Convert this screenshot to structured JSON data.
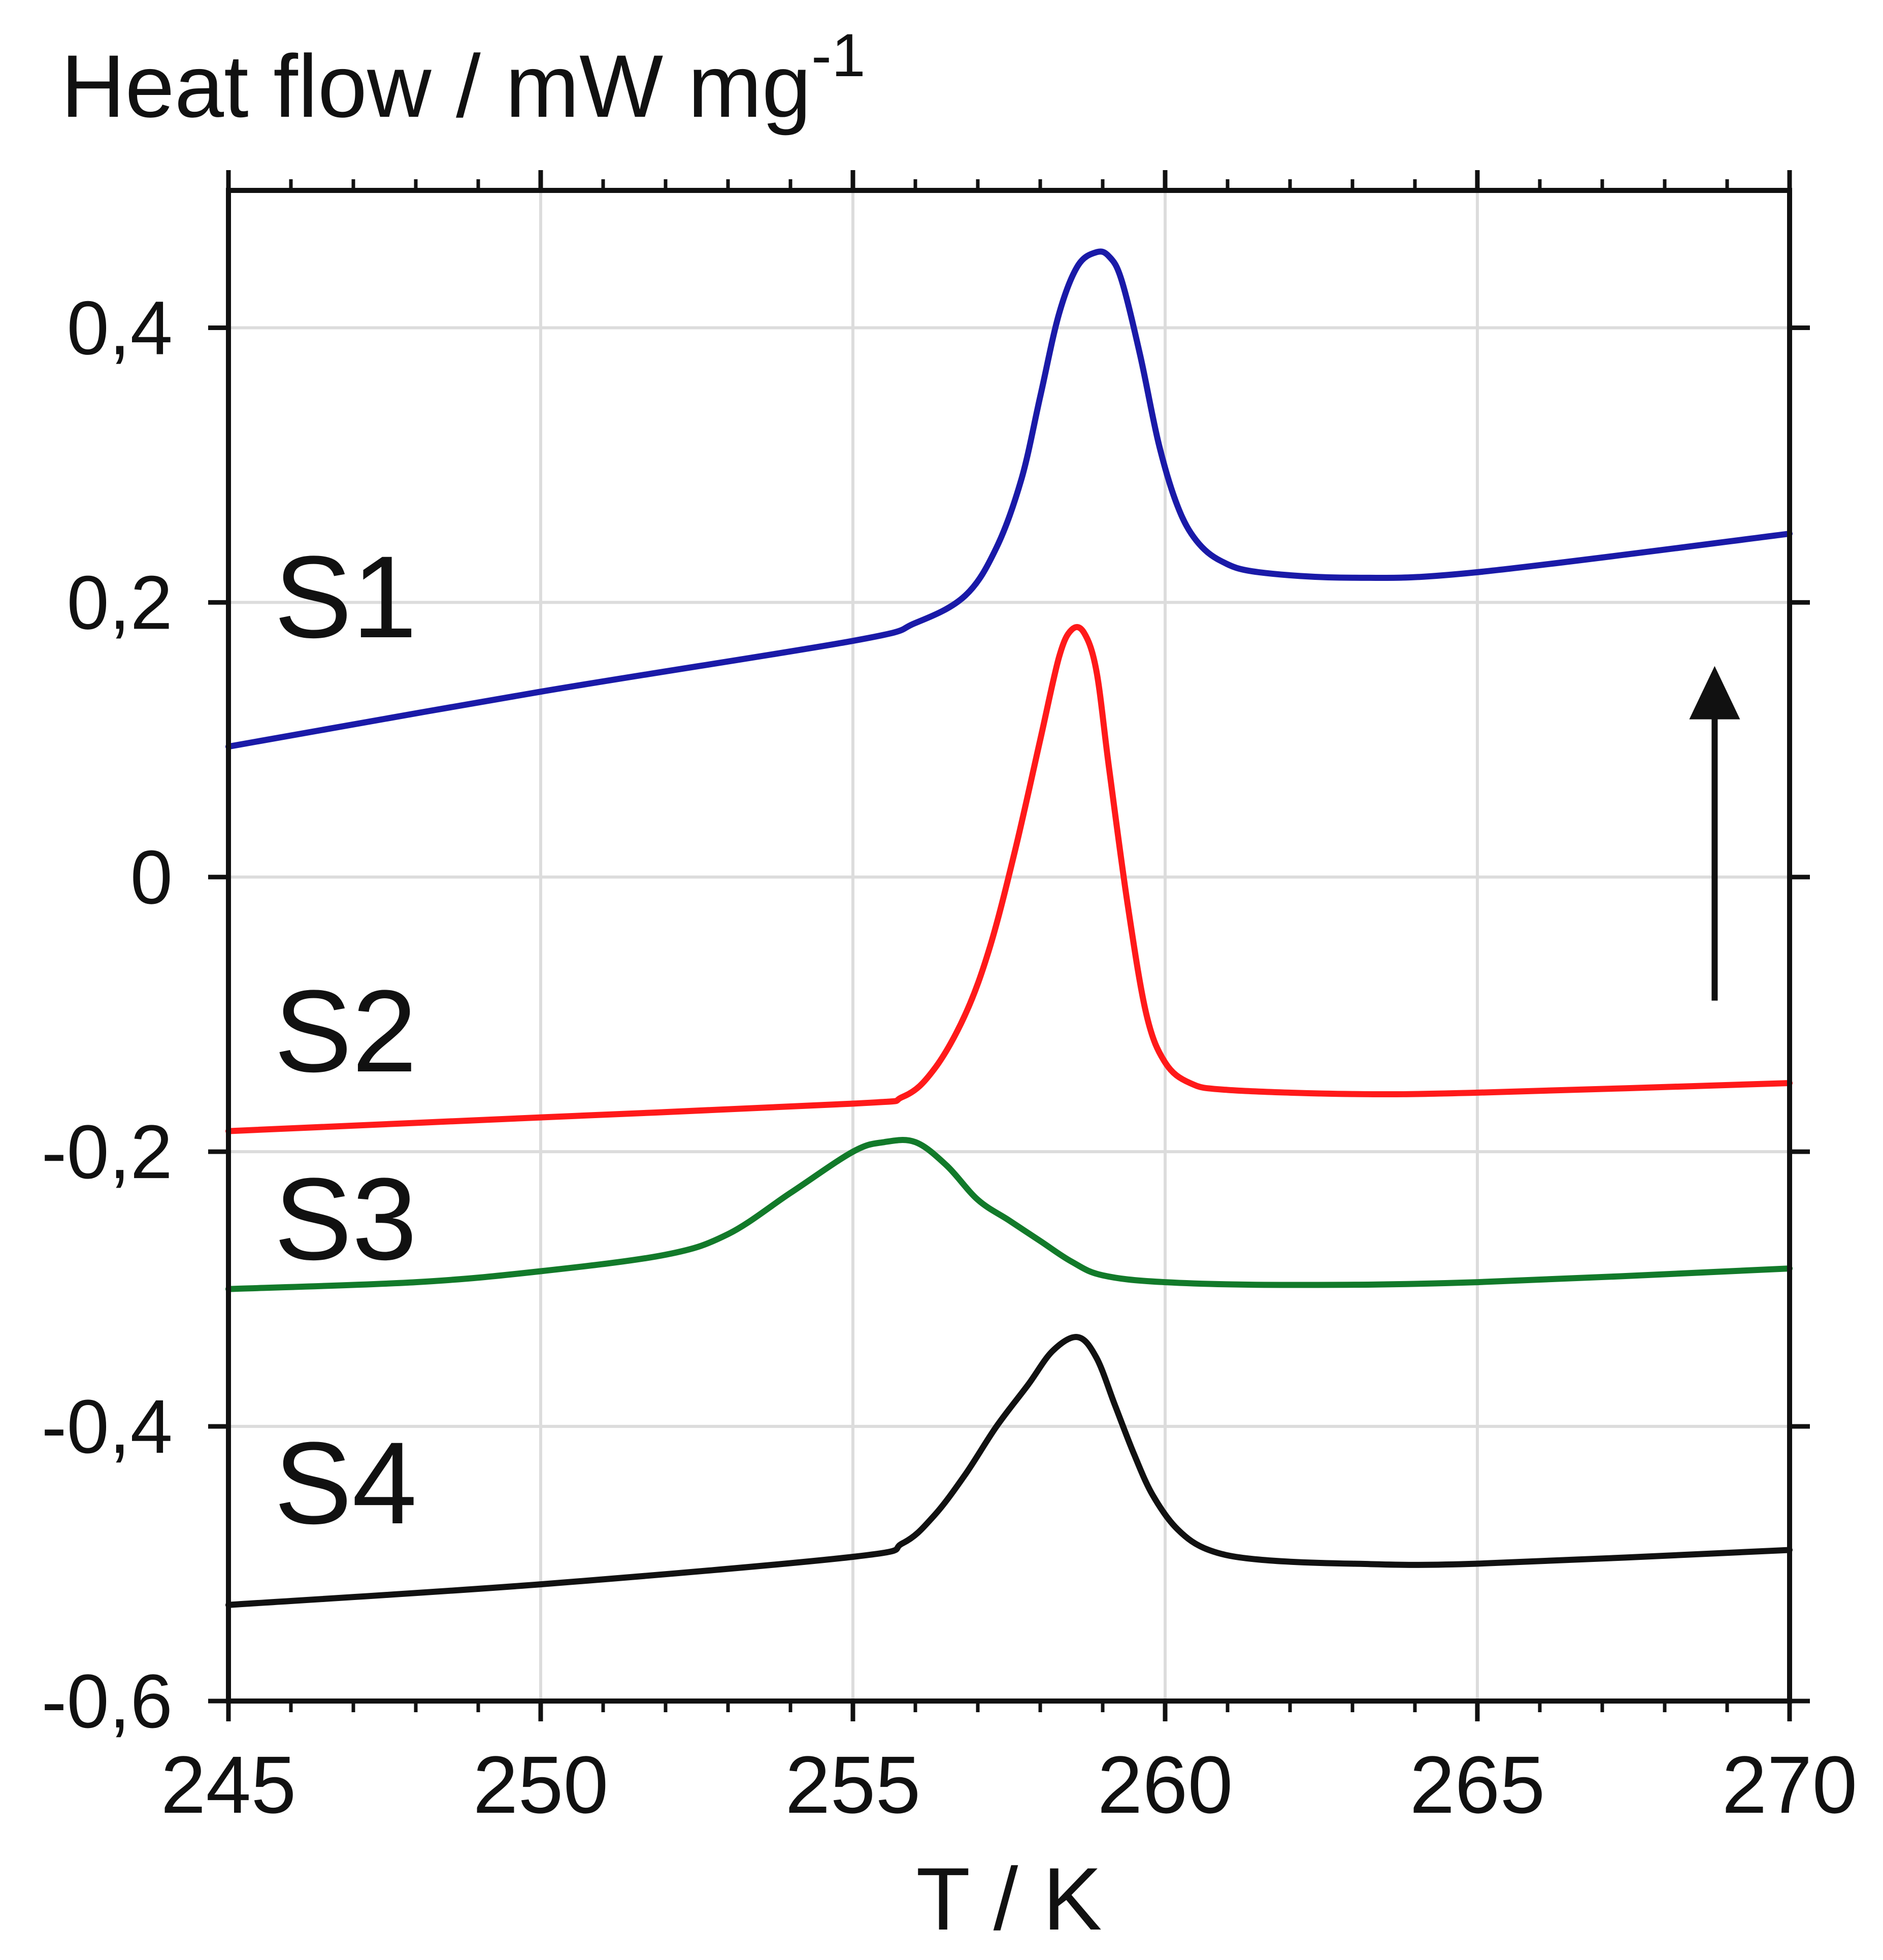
{
  "chart_data": {
    "type": "line",
    "title": "",
    "ylabel": "Heat flow / mW mg",
    "ylabel_exponent": "-1",
    "xlabel": "T / K",
    "xlim": [
      245,
      270
    ],
    "ylim": [
      -0.6,
      0.5
    ],
    "grid": true,
    "x_ticks": [
      245,
      250,
      255,
      260,
      265,
      270
    ],
    "x_tick_labels": [
      "245",
      "250",
      "255",
      "260",
      "265",
      "270"
    ],
    "y_ticks": [
      -0.6,
      -0.4,
      -0.2,
      0,
      0.2,
      0.4
    ],
    "y_tick_labels": [
      "-0,6",
      "-0,4",
      "-0,2",
      "0",
      "0,2",
      "0,4"
    ],
    "annotation": "arrow pointing up (endothermic direction)",
    "arrow": {
      "x": 268.8,
      "y_start": -0.09,
      "y_end": 0.15
    },
    "series": [
      {
        "name": "S1",
        "color": "#1a1aa8",
        "label_at": [
          253.5,
          0.2
        ],
        "x": [
          245,
          250,
          255,
          256,
          256.8,
          257.3,
          257.7,
          258.0,
          258.3,
          258.6,
          258.9,
          259.1,
          259.3,
          259.6,
          259.9,
          260.2,
          260.5,
          260.9,
          261.5,
          263,
          265,
          270
        ],
        "y": [
          0.095,
          0.135,
          0.172,
          0.185,
          0.205,
          0.24,
          0.29,
          0.35,
          0.41,
          0.445,
          0.455,
          0.452,
          0.435,
          0.38,
          0.315,
          0.27,
          0.245,
          0.23,
          0.222,
          0.218,
          0.222,
          0.25
        ]
      },
      {
        "name": "S2",
        "color": "#ff1a1a",
        "label_at": [
          253.5,
          -0.12
        ],
        "x": [
          245,
          250,
          255,
          255.8,
          256.3,
          256.8,
          257.2,
          257.6,
          258.0,
          258.3,
          258.5,
          258.7,
          258.9,
          259.1,
          259.4,
          259.7,
          260.0,
          260.4,
          261,
          263,
          265,
          270
        ],
        "y": [
          -0.185,
          -0.175,
          -0.165,
          -0.16,
          -0.14,
          -0.1,
          -0.05,
          0.02,
          0.1,
          0.16,
          0.18,
          0.178,
          0.15,
          0.08,
          -0.02,
          -0.1,
          -0.135,
          -0.15,
          -0.155,
          -0.158,
          -0.157,
          -0.15
        ]
      },
      {
        "name": "S3",
        "color": "#127a2a",
        "label_at": [
          253.5,
          -0.25
        ],
        "x": [
          245,
          248,
          250,
          252,
          253,
          254,
          255,
          255.5,
          256,
          256.5,
          257,
          257.5,
          258,
          258.5,
          259,
          260,
          262,
          265,
          270
        ],
        "y": [
          -0.3,
          -0.295,
          -0.287,
          -0.275,
          -0.26,
          -0.23,
          -0.2,
          -0.193,
          -0.193,
          -0.21,
          -0.235,
          -0.25,
          -0.265,
          -0.28,
          -0.29,
          -0.295,
          -0.297,
          -0.295,
          -0.285
        ]
      },
      {
        "name": "S4",
        "color": "#111111",
        "label_at": [
          253.5,
          -0.44
        ],
        "x": [
          245,
          250,
          255,
          255.8,
          256.3,
          256.8,
          257.3,
          257.8,
          258.2,
          258.6,
          258.9,
          259.2,
          259.5,
          259.8,
          260.2,
          260.7,
          261.5,
          263,
          265,
          270
        ],
        "y": [
          -0.53,
          -0.515,
          -0.495,
          -0.485,
          -0.465,
          -0.435,
          -0.4,
          -0.37,
          -0.345,
          -0.335,
          -0.35,
          -0.385,
          -0.42,
          -0.45,
          -0.475,
          -0.49,
          -0.497,
          -0.5,
          -0.5,
          -0.49
        ]
      }
    ]
  }
}
